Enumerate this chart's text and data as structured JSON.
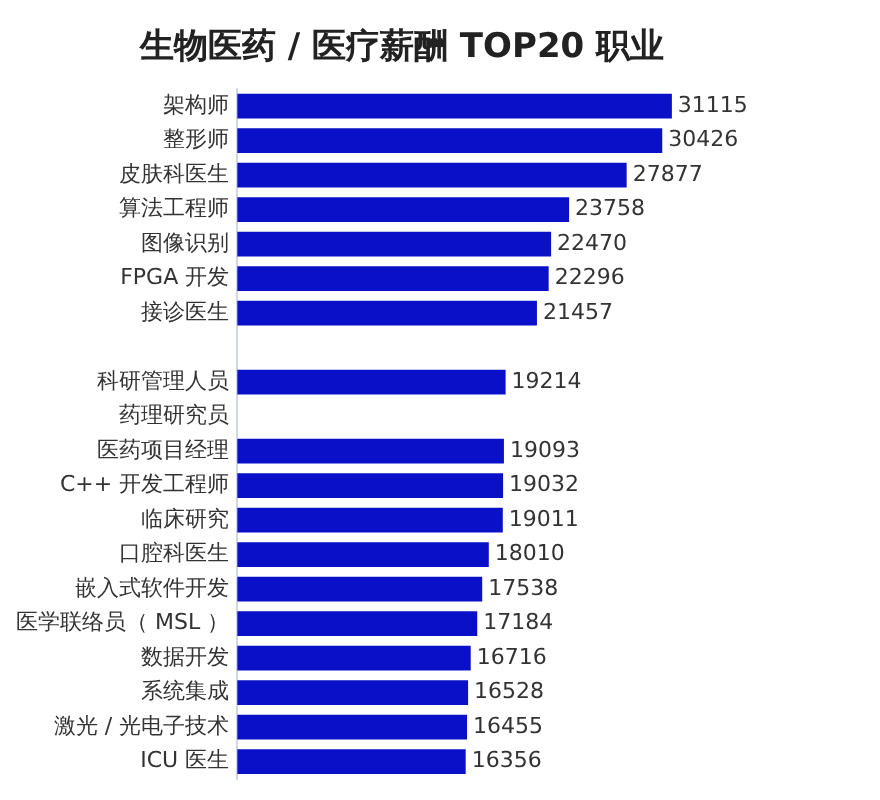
{
  "chart_data": {
    "type": "bar",
    "orientation": "horizontal",
    "title": "生物医药 / 医疗薪酬 TOP20 职业",
    "categories": [
      "架构师",
      "整形师",
      "皮肤科医生",
      "算法工程师",
      "图像识别",
      "FPGA 开发",
      "接诊医生",
      null,
      "科研管理人员",
      "药理研究员",
      "医药项目经理",
      "C++ 开发工程师",
      "临床研究",
      "口腔科医生",
      "嵌入式软件开发",
      "医学联络员（ MSL ）",
      "数据开发",
      "系统集成",
      "激光 / 光电子技术",
      "ICU 医生"
    ],
    "values": [
      31115,
      30426,
      27877,
      23758,
      22470,
      22296,
      21457,
      null,
      19214,
      null,
      19093,
      19032,
      19011,
      18010,
      17538,
      17184,
      16716,
      16528,
      16455,
      16356
    ],
    "color": "#0a10c8",
    "data_labels": true,
    "legend": false
  }
}
